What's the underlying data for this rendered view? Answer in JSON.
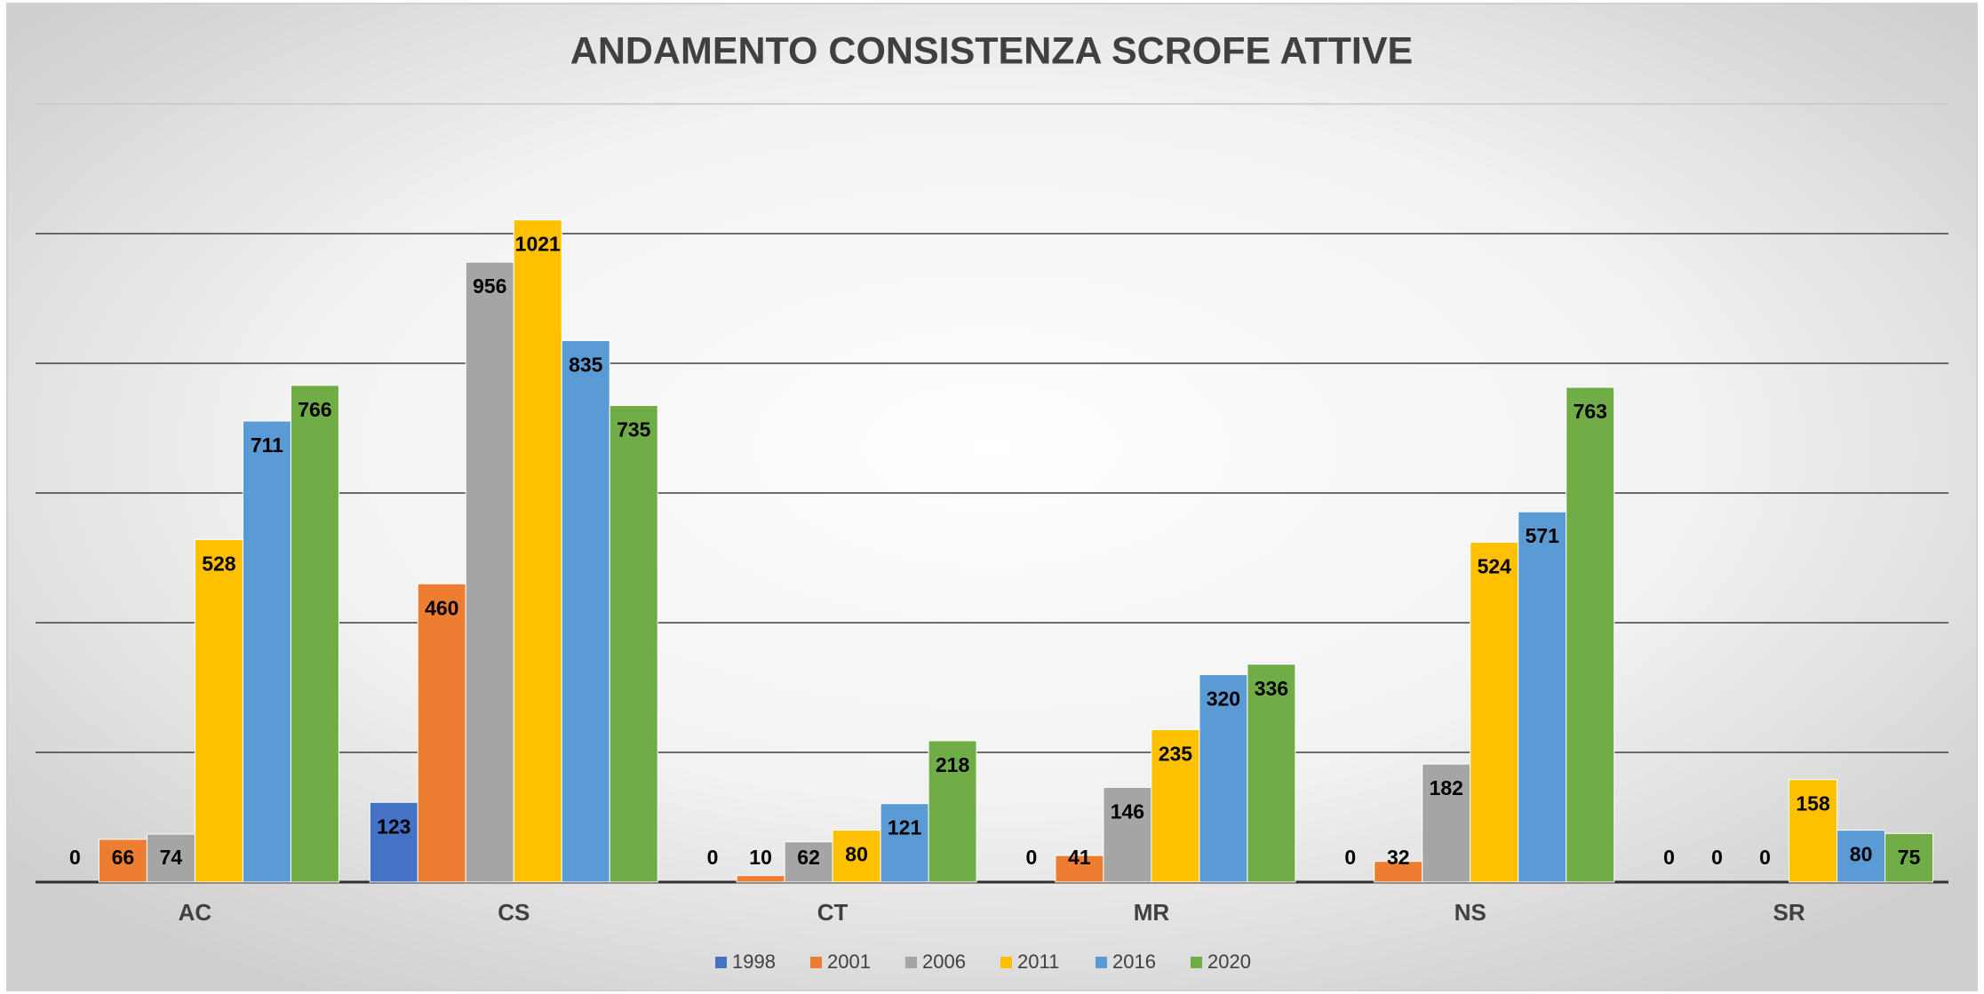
{
  "chart_data": {
    "type": "bar",
    "title": "ANDAMENTO CONSISTENZA SCROFE ATTIVE",
    "categories": [
      "AC",
      "CS",
      "CT",
      "MR",
      "NS",
      "SR"
    ],
    "series": [
      {
        "name": "1998",
        "color": "#4472c4",
        "values": [
          0,
          123,
          0,
          0,
          0,
          0
        ]
      },
      {
        "name": "2001",
        "color": "#ed7d31",
        "values": [
          66,
          460,
          10,
          41,
          32,
          0
        ]
      },
      {
        "name": "2006",
        "color": "#a5a5a5",
        "values": [
          74,
          956,
          62,
          146,
          182,
          0
        ]
      },
      {
        "name": "2011",
        "color": "#ffc000",
        "values": [
          528,
          1021,
          80,
          235,
          524,
          158
        ]
      },
      {
        "name": "2016",
        "color": "#5b9bd5",
        "values": [
          711,
          835,
          121,
          320,
          571,
          80
        ]
      },
      {
        "name": "2020",
        "color": "#70ad47",
        "values": [
          766,
          735,
          218,
          336,
          763,
          75
        ]
      }
    ],
    "ylim": [
      0,
      1200
    ],
    "yticks": [
      0,
      200,
      400,
      600,
      800,
      1000,
      1200
    ],
    "grid": true,
    "legend": "bottom"
  }
}
